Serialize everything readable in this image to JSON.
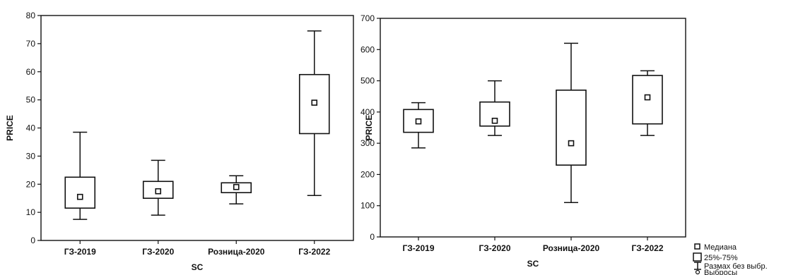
{
  "chart_data": [
    {
      "type": "boxplot",
      "xlabel": "SC",
      "ylabel": "PRICE",
      "ylim": [
        0,
        80
      ],
      "yticks": [
        0,
        10,
        20,
        30,
        40,
        50,
        60,
        70,
        80
      ],
      "categories": [
        "ГЗ-2019",
        "ГЗ-2020",
        "Розница-2020",
        "ГЗ-2022"
      ],
      "boxes": [
        {
          "category": "ГЗ-2019",
          "min": 7.5,
          "q1": 11.5,
          "median": 15.5,
          "q3": 22.5,
          "max": 38.5
        },
        {
          "category": "ГЗ-2020",
          "min": 9,
          "q1": 15,
          "median": 17.5,
          "q3": 21,
          "max": 28.5
        },
        {
          "category": "Розница-2020",
          "min": 13,
          "q1": 17,
          "median": 19,
          "q3": 20.5,
          "max": 23
        },
        {
          "category": "ГЗ-2022",
          "min": 16,
          "q1": 38,
          "median": 49,
          "q3": 59,
          "max": 74.5
        }
      ]
    },
    {
      "type": "boxplot",
      "xlabel": "SC",
      "ylabel": "PRICE",
      "ylim": [
        0,
        700
      ],
      "yticks": [
        0,
        100,
        200,
        300,
        400,
        500,
        600,
        700
      ],
      "categories": [
        "ГЗ-2019",
        "ГЗ-2020",
        "Розница-2020",
        "ГЗ-2022"
      ],
      "boxes": [
        {
          "category": "ГЗ-2019",
          "min": 285,
          "q1": 335,
          "median": 370,
          "q3": 408,
          "max": 430
        },
        {
          "category": "ГЗ-2020",
          "min": 325,
          "q1": 355,
          "median": 372,
          "q3": 432,
          "max": 500
        },
        {
          "category": "Розница-2020",
          "min": 110,
          "q1": 230,
          "median": 300,
          "q3": 470,
          "max": 620
        },
        {
          "category": "ГЗ-2022",
          "min": 325,
          "q1": 362,
          "median": 447,
          "q3": 517,
          "max": 532
        }
      ]
    }
  ],
  "legend": {
    "median": "Медиана",
    "iqr": "25%-75%",
    "range": "Размах без выбр.",
    "outliers": "Выбросы"
  }
}
